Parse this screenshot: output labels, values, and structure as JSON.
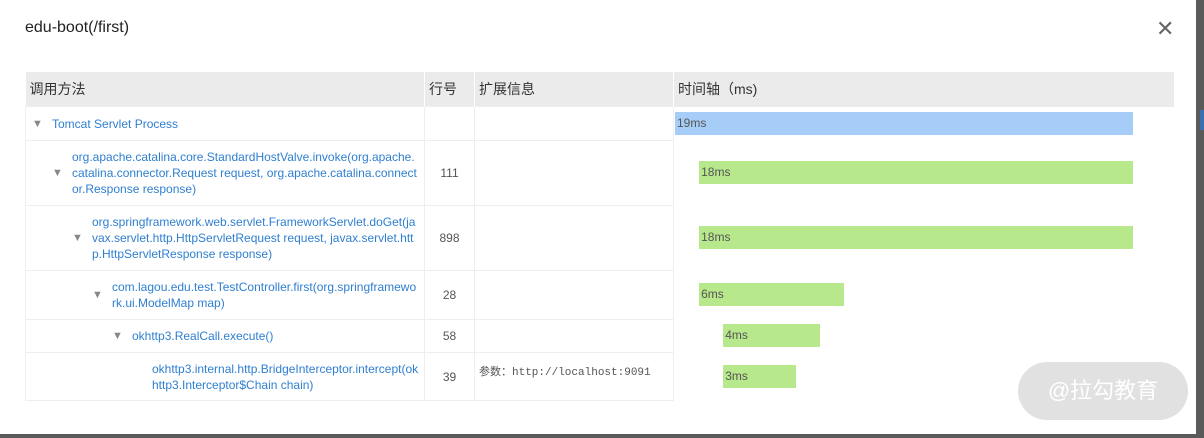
{
  "dialog": {
    "title": "edu-boot(/first)",
    "close_icon": "close-icon"
  },
  "table": {
    "headers": [
      "调用方法",
      "行号",
      "扩展信息",
      "时间轴（ms)"
    ],
    "scale_ms": 19,
    "colors": {
      "root": "#a6cdf7",
      "child": "#b8e88c"
    },
    "rows": [
      {
        "method": "Tomcat Servlet Process",
        "line": "",
        "ext": "",
        "duration": "19ms",
        "start_ms": 0,
        "ms": 19,
        "depth": 0,
        "root": true
      },
      {
        "method": "org.apache.catalina.core.StandardHostValve.invoke(org.apache.catalina.connector.Request request, org.apache.catalina.connector.Response response)",
        "line": "111",
        "ext": "",
        "duration": "18ms",
        "start_ms": 1,
        "ms": 18,
        "depth": 1
      },
      {
        "method": "org.springframework.web.servlet.FrameworkServlet.doGet(javax.servlet.http.HttpServletRequest request, javax.servlet.http.HttpServletResponse response)",
        "line": "898",
        "ext": "",
        "duration": "18ms",
        "start_ms": 1,
        "ms": 18,
        "depth": 2
      },
      {
        "method": "com.lagou.edu.test.TestController.first(org.springframework.ui.ModelMap map)",
        "line": "28",
        "ext": "",
        "duration": "6ms",
        "start_ms": 1,
        "ms": 6,
        "depth": 3
      },
      {
        "method": "okhttp3.RealCall.execute()",
        "line": "58",
        "ext": "",
        "duration": "4ms",
        "start_ms": 2,
        "ms": 4,
        "depth": 4
      },
      {
        "method": "okhttp3.internal.http.BridgeInterceptor.intercept(okhttp3.Interceptor$Chain chain)",
        "line": "39",
        "ext": "参数：http://localhost:9091",
        "duration": "3ms",
        "start_ms": 2,
        "ms": 3,
        "depth": 5,
        "leaf": true
      }
    ]
  },
  "watermark": "@拉勾教育"
}
